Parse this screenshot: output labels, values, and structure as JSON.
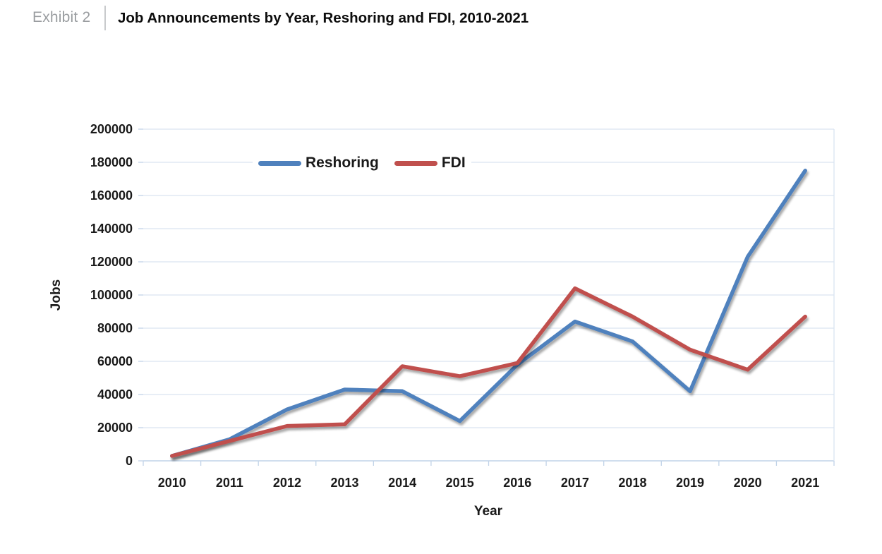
{
  "header": {
    "exhibit_label": "Exhibit 2",
    "title": "Job Announcements by Year, Reshoring and FDI, 2010-2021"
  },
  "chart_data": {
    "type": "line",
    "title": "Job Announcements by Year, Reshoring and FDI, 2010-2021",
    "categories": [
      "2010",
      "2011",
      "2012",
      "2013",
      "2014",
      "2015",
      "2016",
      "2017",
      "2018",
      "2019",
      "2020",
      "2021"
    ],
    "series": [
      {
        "name": "Reshoring",
        "color": "#4F81BD",
        "values": [
          3000,
          13000,
          31000,
          43000,
          42000,
          24000,
          58000,
          84000,
          72000,
          42000,
          123000,
          175000
        ]
      },
      {
        "name": "FDI",
        "color": "#C0504D",
        "values": [
          3000,
          12000,
          21000,
          22000,
          57000,
          51000,
          59000,
          104000,
          87000,
          67000,
          55000,
          87000
        ]
      }
    ],
    "xlabel": "Year",
    "ylabel": "Jobs",
    "ylim": [
      0,
      200000
    ],
    "ytick_step": 20000,
    "ytick_labels": [
      "0",
      "20000",
      "40000",
      "60000",
      "80000",
      "100000",
      "120000",
      "140000",
      "160000",
      "180000",
      "200000"
    ],
    "grid": true,
    "legend_position": "top-center-inside",
    "styles": {
      "gridline_color": "#d9e4f1",
      "axis_line_color": "#c1d3e8",
      "tick_label_color": "#1a1a1a"
    }
  }
}
